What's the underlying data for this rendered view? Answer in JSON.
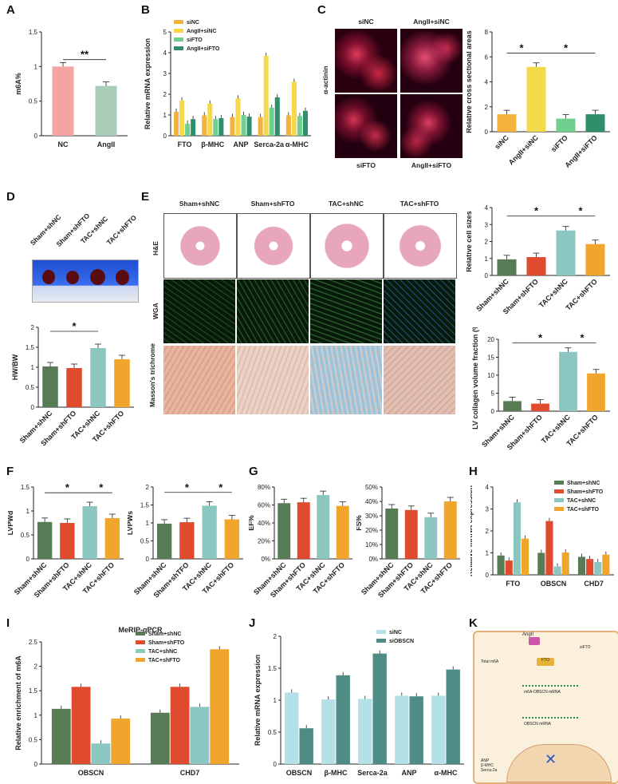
{
  "panel_labels": {
    "A": "A",
    "B": "B",
    "C": "C",
    "D": "D",
    "E": "E",
    "F": "F",
    "G": "G",
    "H": "H",
    "I": "I",
    "J": "J",
    "K": "K"
  },
  "colors": {
    "siNC": "#f3b33d",
    "AngII_siNC": "#f4d94a",
    "siFTO": "#6fcf8e",
    "AngII_siFTO": "#2f8f6a",
    "Sham_shNC": "#577c55",
    "Sham_shFTO": "#e04a2e",
    "TAC_shNC": "#8cc6c1",
    "TAC_shFTO": "#f0a52c",
    "A_NC": "#f5a3a3",
    "A_AngII": "#a9cdb8",
    "J_siNC": "#b4e1e8",
    "J_siOBSCN": "#4f8c86"
  },
  "C_micro": {
    "top_left": "siNC",
    "top_right": "AngII+siNC",
    "bottom_left": "siFTO",
    "bottom_right": "AngII+siFTO",
    "row_label": "α-actinin"
  },
  "E_micro": {
    "columns": [
      "Sham+shNC",
      "Sham+shFTO",
      "TAC+shNC",
      "TAC+shFTO"
    ],
    "rows": [
      "H&E",
      "WGA",
      "Masson's trichrome"
    ]
  },
  "D_photo": {
    "labels": [
      "Sham+shNC",
      "Sham+shFTO",
      "TAC+shNC",
      "TAC+shFTO"
    ]
  },
  "K_diagram": {
    "labels": [
      "AngII",
      "siFTO",
      "Total m6A",
      "FTO",
      "m6A-OBSCN mRNA",
      "OBSCN mRNA",
      "ANP",
      "β-MHC",
      "Serca-2a"
    ]
  },
  "chart_data": [
    {
      "id": "A",
      "type": "bar",
      "categories": [
        "NC",
        "AngII"
      ],
      "values": [
        1.0,
        0.72
      ],
      "ylabel": "m6A%",
      "ylim": [
        0,
        1.5
      ],
      "yticks": [
        0.0,
        0.5,
        1.0,
        1.5
      ],
      "annotations": [
        "**"
      ]
    },
    {
      "id": "B",
      "type": "bar",
      "categories": [
        "FTO",
        "β-MHC",
        "ANP",
        "Serca-2a",
        "α-MHC"
      ],
      "series": [
        {
          "name": "siNC",
          "values": [
            1.15,
            0.98,
            0.9,
            0.9,
            0.98
          ]
        },
        {
          "name": "AngII+siNC",
          "values": [
            1.7,
            1.55,
            1.8,
            3.85,
            2.6
          ]
        },
        {
          "name": "siFTO",
          "values": [
            0.58,
            0.8,
            1.0,
            1.35,
            0.95
          ]
        },
        {
          "name": "AngII+siFTO",
          "values": [
            0.8,
            0.85,
            0.92,
            1.85,
            1.2
          ]
        }
      ],
      "ylabel": "Relative mRNA expression",
      "ylim": [
        0,
        5
      ],
      "yticks": [
        0,
        1,
        2,
        3,
        4,
        5
      ],
      "annotations": [
        "*",
        "*",
        "*",
        "*",
        "*",
        "*",
        "*",
        "*",
        "*",
        "*",
        "*"
      ]
    },
    {
      "id": "C",
      "type": "bar",
      "categories": [
        "siNC",
        "AngII+siNC",
        "siFTO",
        "AngII+siFTO"
      ],
      "values": [
        1.4,
        5.2,
        1.05,
        1.4
      ],
      "ylabel": "Relative cross sectional areas",
      "ylim": [
        0,
        8
      ],
      "yticks": [
        0,
        2,
        4,
        6,
        8
      ],
      "annotations": [
        "*",
        "*"
      ]
    },
    {
      "id": "D",
      "type": "bar",
      "categories": [
        "Sham+shNC",
        "Sham+shFTO",
        "TAC+shNC",
        "TAC+shFTO"
      ],
      "values": [
        1.02,
        0.98,
        1.48,
        1.2
      ],
      "ylabel": "HW/BW",
      "ylim": [
        0,
        2.0
      ],
      "yticks": [
        0.0,
        0.5,
        1.0,
        1.5,
        2.0
      ],
      "annotations": [
        "*"
      ]
    },
    {
      "id": "E1",
      "type": "bar",
      "categories": [
        "Sham+shNC",
        "Sham+shFTO",
        "TAC+shNC",
        "TAC+shFTO"
      ],
      "values": [
        0.95,
        1.08,
        2.65,
        1.85
      ],
      "ylabel": "Relative cell sizes",
      "ylim": [
        0,
        4
      ],
      "yticks": [
        0,
        1,
        2,
        3,
        4
      ],
      "annotations": [
        "*",
        "*"
      ]
    },
    {
      "id": "E2",
      "type": "bar",
      "categories": [
        "Sham+shNC",
        "Sham+shFTO",
        "TAC+shNC",
        "TAC+shFTO"
      ],
      "values": [
        2.8,
        2.1,
        16.5,
        10.5
      ],
      "ylabel": "LV collagen volume fraction (%)",
      "ylim": [
        0,
        20
      ],
      "yticks": [
        0,
        5,
        10,
        15,
        20
      ],
      "annotations": [
        "*",
        "*"
      ]
    },
    {
      "id": "F1",
      "type": "bar",
      "categories": [
        "Sham+shNC",
        "Sham+shFTO",
        "TAC+shNC",
        "TAC+shFTO"
      ],
      "values": [
        0.77,
        0.75,
        1.1,
        0.85
      ],
      "ylabel": "LVPWd",
      "ylim": [
        0,
        1.5
      ],
      "yticks": [
        0.0,
        0.5,
        1.0,
        1.5
      ],
      "annotations": [
        "*",
        "*"
      ]
    },
    {
      "id": "F2",
      "type": "bar",
      "categories": [
        "Sham+shNC",
        "Sham+shTFO",
        "TAC+shNC",
        "TAC+shFTO"
      ],
      "values": [
        0.98,
        1.02,
        1.48,
        1.1
      ],
      "ylabel": "LVPWs",
      "ylim": [
        0,
        2.0
      ],
      "yticks": [
        0.0,
        0.5,
        1.0,
        1.5,
        2.0
      ],
      "annotations": [
        "*",
        "*"
      ]
    },
    {
      "id": "G1",
      "type": "bar",
      "categories": [
        "Sham+shNC",
        "Sham+shFTO",
        "TAC+shNC",
        "TAC+shFTO"
      ],
      "values": [
        62,
        63,
        71,
        59
      ],
      "ylabel": "EF%",
      "ylim": [
        0,
        80
      ],
      "yticks": [
        "0%",
        "20%",
        "40%",
        "60%",
        "80%"
      ]
    },
    {
      "id": "G2",
      "type": "bar",
      "categories": [
        "Sham+shNC",
        "Sham+shFTO",
        "TAC+shNC",
        "TAC+shFTO"
      ],
      "values": [
        35,
        34,
        29,
        40
      ],
      "ylabel": "FS%",
      "ylim": [
        0,
        50
      ],
      "yticks": [
        "0%",
        "10%",
        "20%",
        "30%",
        "40%",
        "50%"
      ]
    },
    {
      "id": "H",
      "type": "bar",
      "categories": [
        "FTO",
        "OBSCN",
        "CHD7"
      ],
      "series": [
        {
          "name": "Sham+shNC",
          "values": [
            0.88,
            1.0,
            0.82
          ]
        },
        {
          "name": "Sham+shFTO",
          "values": [
            0.65,
            2.45,
            0.72
          ]
        },
        {
          "name": "TAC+shNC",
          "values": [
            3.3,
            0.38,
            0.58
          ]
        },
        {
          "name": "TAC+shFTO",
          "values": [
            1.65,
            1.02,
            0.92
          ]
        }
      ],
      "ylabel": "Relative mRNA expression",
      "ylim": [
        0,
        4
      ],
      "yticks": [
        0,
        1,
        2,
        3,
        4
      ],
      "annotations": [
        "*",
        "*",
        "*",
        "*"
      ]
    },
    {
      "id": "I",
      "type": "bar",
      "title": "MeRIP-qPCR",
      "categories": [
        "OBSCN",
        "CHD7"
      ],
      "series": [
        {
          "name": "Sham+shNC",
          "values": [
            1.13,
            1.05
          ]
        },
        {
          "name": "Sham+shFTO",
          "values": [
            1.58,
            1.58
          ]
        },
        {
          "name": "TAC+shNC",
          "values": [
            0.42,
            1.17
          ]
        },
        {
          "name": "TAC+shFTO",
          "values": [
            0.93,
            2.35
          ]
        }
      ],
      "ylabel": "Relative enrichment of m6A",
      "ylim": [
        0,
        2.5
      ],
      "yticks": [
        0.0,
        0.5,
        1.0,
        1.5,
        2.0,
        2.5
      ],
      "annotations": [
        "*",
        "*"
      ]
    },
    {
      "id": "J",
      "type": "bar",
      "categories": [
        "OBSCN",
        "β-MHC",
        "Serca-2a",
        "ANP",
        "α-MHC"
      ],
      "series": [
        {
          "name": "siNC",
          "values": [
            1.12,
            1.01,
            1.02,
            1.07,
            1.07
          ]
        },
        {
          "name": "siOBSCN",
          "values": [
            0.56,
            1.39,
            1.73,
            1.06,
            1.48
          ]
        }
      ],
      "ylabel": "Relative mRNA expression",
      "ylim": [
        0,
        2.0
      ],
      "yticks": [
        0.0,
        0.5,
        1.0,
        1.5,
        2.0
      ],
      "annotations": [
        "*",
        "*",
        "*",
        "*"
      ]
    }
  ]
}
